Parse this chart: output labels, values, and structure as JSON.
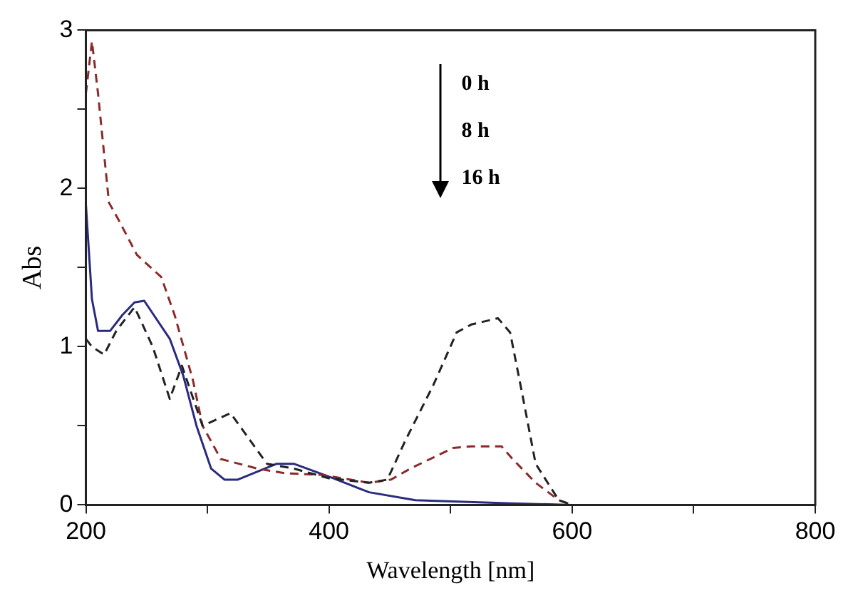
{
  "chart_data": {
    "type": "line",
    "xlabel": "Wavelength [nm]",
    "ylabel": "Abs",
    "annotations": [
      "0 h",
      "8 h",
      "16 h"
    ],
    "xlim": [
      200,
      800
    ],
    "ylim": [
      0,
      3
    ],
    "xticks": [
      200,
      {
        "value": 300,
        "label": null
      },
      400,
      {
        "value": 500,
        "label": null
      },
      600,
      {
        "value": 700,
        "label": null
      },
      800
    ],
    "yticks": [
      0,
      {
        "value": 0.5,
        "label": null
      },
      1,
      {
        "value": 1.5,
        "label": null
      },
      2,
      {
        "value": 2.5,
        "label": null
      },
      3
    ],
    "grid": false,
    "legend": false,
    "marker": "none",
    "series": [
      {
        "color": "#222222",
        "line_style": "dashed",
        "x": [
          200,
          205,
          215,
          225,
          240,
          255,
          269,
          279,
          296,
          319,
          349,
          371,
          399,
          433,
          448,
          463,
          486,
          505,
          517,
          539,
          549,
          559,
          570,
          589,
          600,
          800
        ],
        "values": [
          1.05,
          1.0,
          0.95,
          1.1,
          1.25,
          1.0,
          0.67,
          0.88,
          0.5,
          0.58,
          0.26,
          0.23,
          0.17,
          0.14,
          0.16,
          0.41,
          0.76,
          1.09,
          1.14,
          1.18,
          1.09,
          0.7,
          0.26,
          0.03,
          0,
          0
        ]
      },
      {
        "color": "#8b2a2a",
        "line_style": "dashed",
        "x": [
          200,
          205,
          210,
          219,
          227,
          242,
          262,
          273,
          288,
          296,
          311,
          341,
          364,
          394,
          433,
          451,
          467,
          502,
          517,
          542,
          551,
          570,
          589,
          600,
          800
        ],
        "values": [
          2.6,
          2.93,
          2.6,
          1.91,
          1.8,
          1.58,
          1.44,
          1.2,
          0.79,
          0.5,
          0.29,
          0.23,
          0.2,
          0.19,
          0.14,
          0.16,
          0.23,
          0.36,
          0.37,
          0.37,
          0.29,
          0.14,
          0.03,
          0,
          0
        ]
      },
      {
        "color": "#2a2a80",
        "line_style": "solid",
        "x": [
          200,
          205,
          210,
          220,
          230,
          240,
          248,
          269,
          280,
          291,
          303,
          314,
          325,
          357,
          371,
          403,
          433,
          471,
          550,
          600,
          710
        ],
        "values": [
          1.9,
          1.3,
          1.1,
          1.1,
          1.2,
          1.28,
          1.29,
          1.05,
          0.82,
          0.5,
          0.23,
          0.16,
          0.16,
          0.26,
          0.26,
          0.17,
          0.08,
          0.03,
          0.01,
          0,
          0
        ]
      }
    ]
  }
}
